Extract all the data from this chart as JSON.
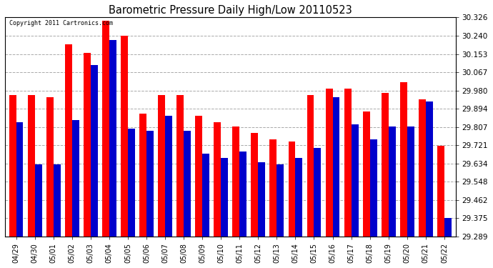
{
  "title": "Barometric Pressure Daily High/Low 20110523",
  "copyright": "Copyright 2011 Cartronics.com",
  "categories": [
    "04/29",
    "04/30",
    "05/01",
    "05/02",
    "05/03",
    "05/04",
    "05/05",
    "05/06",
    "05/07",
    "05/08",
    "05/09",
    "05/10",
    "05/11",
    "05/12",
    "05/13",
    "05/14",
    "05/15",
    "05/16",
    "05/17",
    "05/18",
    "05/19",
    "05/20",
    "05/21",
    "05/22"
  ],
  "highs": [
    29.96,
    29.96,
    29.95,
    30.2,
    30.16,
    30.31,
    30.24,
    29.87,
    29.96,
    29.96,
    29.86,
    29.83,
    29.81,
    29.78,
    29.75,
    29.74,
    29.96,
    29.99,
    29.99,
    29.88,
    29.97,
    30.02,
    29.94,
    29.72
  ],
  "lows": [
    29.83,
    29.63,
    29.63,
    29.84,
    30.1,
    30.22,
    29.8,
    29.79,
    29.86,
    29.79,
    29.68,
    29.66,
    29.69,
    29.64,
    29.63,
    29.66,
    29.71,
    29.95,
    29.82,
    29.75,
    29.81,
    29.81,
    29.93,
    29.375
  ],
  "high_color": "#ff0000",
  "low_color": "#0000cc",
  "bg_color": "#ffffff",
  "plot_bg_color": "#ffffff",
  "grid_color": "#aaaaaa",
  "title_color": "#000000",
  "tick_color": "#000000",
  "spine_color": "#000000",
  "yticks": [
    29.289,
    29.375,
    29.462,
    29.548,
    29.634,
    29.721,
    29.807,
    29.894,
    29.98,
    30.067,
    30.153,
    30.24,
    30.326
  ],
  "ymin": 29.289,
  "ymax": 30.326,
  "bar_width": 0.38
}
